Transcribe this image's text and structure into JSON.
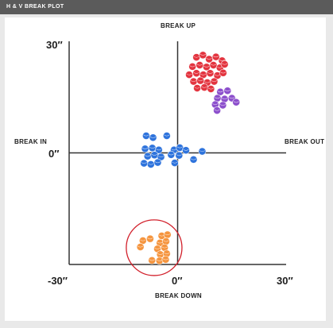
{
  "header": {
    "title": "H & V BREAK PLOT"
  },
  "labels": {
    "up": "BREAK UP",
    "down": "BREAK DOWN",
    "in": "BREAK IN",
    "out": "BREAK OUT",
    "y_top": "30″",
    "y_mid": "0″",
    "x_left": "-30″",
    "x_mid": "0″",
    "x_right": "30″"
  },
  "colors": {
    "red": "#e3343f",
    "purple": "#8c4fcc",
    "blue": "#2e73dc",
    "orange": "#f5953f",
    "highlight": "#d2202b",
    "axis": "#333333"
  },
  "chart_data": {
    "type": "scatter",
    "xlim": [
      -30,
      30
    ],
    "ylim": [
      -30,
      30
    ],
    "xlabel_left": "BREAK IN",
    "xlabel_right": "BREAK OUT",
    "ylabel_top": "BREAK UP",
    "ylabel_bottom": "BREAK DOWN",
    "grid": false,
    "series": [
      {
        "color": "red",
        "points": [
          [
            5.2,
            25.7
          ],
          [
            7.0,
            26.3
          ],
          [
            8.7,
            25.2
          ],
          [
            10.6,
            25.8
          ],
          [
            12.3,
            24.8
          ],
          [
            4.1,
            23.2
          ],
          [
            6.1,
            23.6
          ],
          [
            8.0,
            23.1
          ],
          [
            9.9,
            23.6
          ],
          [
            11.7,
            22.9
          ],
          [
            13.0,
            23.8
          ],
          [
            3.2,
            21.0
          ],
          [
            5.2,
            21.4
          ],
          [
            7.1,
            21.0
          ],
          [
            9.0,
            21.4
          ],
          [
            11.0,
            20.8
          ],
          [
            12.6,
            21.5
          ],
          [
            4.4,
            19.2
          ],
          [
            6.3,
            19.4
          ],
          [
            8.2,
            18.9
          ],
          [
            10.1,
            19.2
          ],
          [
            5.4,
            17.4
          ],
          [
            7.4,
            17.6
          ],
          [
            9.2,
            17.2
          ]
        ]
      },
      {
        "color": "purple",
        "points": [
          [
            11.8,
            16.4
          ],
          [
            13.8,
            16.7
          ],
          [
            11.0,
            14.7
          ],
          [
            13.0,
            14.5
          ],
          [
            15.0,
            14.7
          ],
          [
            10.4,
            13.0
          ],
          [
            12.5,
            12.8
          ],
          [
            10.9,
            11.4
          ],
          [
            16.2,
            13.6
          ]
        ]
      },
      {
        "color": "blue",
        "points": [
          [
            -8.7,
            4.6
          ],
          [
            -6.8,
            4.1
          ],
          [
            -3.0,
            4.6
          ],
          [
            -9.0,
            1.1
          ],
          [
            -7.0,
            1.3
          ],
          [
            -5.2,
            0.8
          ],
          [
            -1.0,
            0.8
          ],
          [
            0.6,
            1.4
          ],
          [
            2.3,
            0.7
          ],
          [
            -8.3,
            -0.9
          ],
          [
            -6.4,
            -0.6
          ],
          [
            -4.6,
            -1.1
          ],
          [
            -1.8,
            -0.5
          ],
          [
            0.4,
            -0.7
          ],
          [
            4.4,
            -1.8
          ],
          [
            6.8,
            0.4
          ],
          [
            -9.3,
            -2.8
          ],
          [
            -7.4,
            -3.1
          ],
          [
            -5.5,
            -2.6
          ],
          [
            -0.8,
            -2.7
          ]
        ]
      },
      {
        "color": "orange",
        "points": [
          [
            -4.4,
            -22.3
          ],
          [
            -2.8,
            -22.0
          ],
          [
            -7.6,
            -23.1
          ],
          [
            -9.6,
            -23.6
          ],
          [
            -4.9,
            -24.2
          ],
          [
            -3.2,
            -23.8
          ],
          [
            -10.3,
            -25.3
          ],
          [
            -5.6,
            -25.8
          ],
          [
            -3.6,
            -25.5
          ],
          [
            -4.8,
            -27.3
          ],
          [
            -3.0,
            -27.1
          ],
          [
            -7.1,
            -28.9
          ],
          [
            -5.0,
            -29.0
          ],
          [
            -3.3,
            -28.7
          ]
        ]
      }
    ],
    "annotation": {
      "type": "circle",
      "center": [
        -6.5,
        -25.5
      ],
      "radius": 7.7,
      "color": "highlight"
    }
  }
}
